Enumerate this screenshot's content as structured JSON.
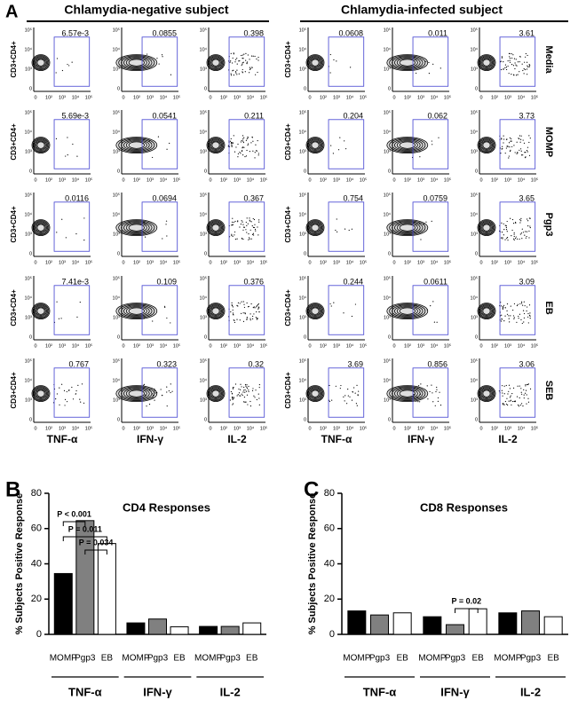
{
  "panel_a": {
    "label": "A",
    "groups": [
      "Chlamydia-negative subject",
      "Chlamydia-infected subject"
    ],
    "rows": [
      "Media",
      "MOMP",
      "Pgp3",
      "EB",
      "SEB"
    ],
    "columns": [
      "TNF-α",
      "IFN-γ",
      "IL-2"
    ],
    "y_label": "CD3+CD4+",
    "x_ticks": [
      "0",
      "10²",
      "10³",
      "10⁴",
      "10⁵"
    ],
    "y_ticks": [
      "10⁵",
      "10⁴",
      "10³",
      "0"
    ],
    "gates": [
      [
        "6.57e-3",
        "0.0855",
        "0.398",
        "0.0608",
        "0.011",
        "3.61"
      ],
      [
        "5.69e-3",
        "0.0541",
        "0.211",
        "0.204",
        "0.062",
        "3.73"
      ],
      [
        "0.0116",
        "0.0694",
        "0.367",
        "0.754",
        "0.0759",
        "3.65"
      ],
      [
        "7.41e-3",
        "0.109",
        "0.376",
        "0.244",
        "0.0611",
        "3.09"
      ],
      [
        "0.767",
        "0.323",
        "0.32",
        "3.69",
        "0.856",
        "3.06"
      ]
    ]
  },
  "chart_data": [
    {
      "type": "bar",
      "label": "B",
      "title": "CD4 Responses",
      "y_label": "% Subjects Positive Response",
      "groups": [
        "TNF-α",
        "IFN-γ",
        "IL-2"
      ],
      "series": [
        {
          "name": "MOMP",
          "color": "#000000",
          "values": [
            34.5,
            6.5,
            4.5
          ]
        },
        {
          "name": "Pgp3",
          "color": "#808080",
          "values": [
            64.5,
            8.7,
            4.5
          ]
        },
        {
          "name": "EB",
          "color": "#ffffff",
          "values": [
            51.5,
            4.3,
            6.5
          ]
        }
      ],
      "ylim": [
        0,
        80
      ],
      "yticks": [
        0,
        20,
        40,
        60,
        80
      ],
      "annotations": [
        "P < 0.001",
        "P = 0.011",
        "P = 0.034"
      ]
    },
    {
      "type": "bar",
      "label": "C",
      "title": "CD8 Responses",
      "y_label": "% Subjects Positive Response",
      "groups": [
        "TNF-α",
        "IFN-γ",
        "IL-2"
      ],
      "series": [
        {
          "name": "MOMP",
          "color": "#000000",
          "values": [
            13.3,
            10,
            12.2
          ]
        },
        {
          "name": "Pgp3",
          "color": "#808080",
          "values": [
            11,
            5.5,
            13.3
          ]
        },
        {
          "name": "EB",
          "color": "#ffffff",
          "values": [
            12.2,
            14.5,
            10
          ]
        }
      ],
      "ylim": [
        0,
        80
      ],
      "yticks": [
        0,
        20,
        40,
        60,
        80
      ],
      "annotations": [
        "P = 0.02"
      ]
    }
  ]
}
